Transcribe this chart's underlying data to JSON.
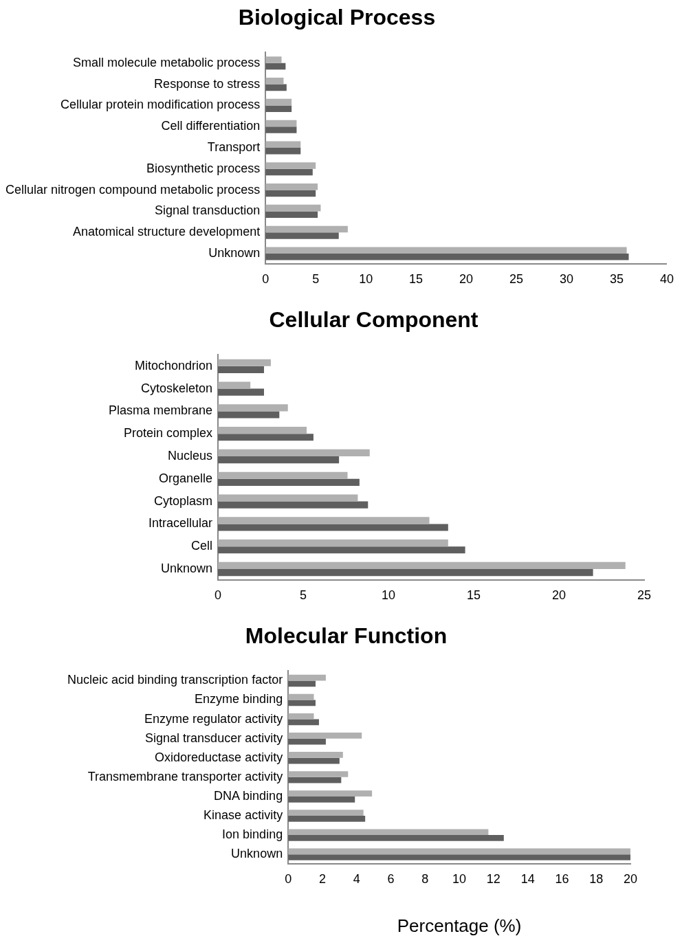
{
  "chart_data": [
    {
      "type": "bar",
      "orientation": "horizontal",
      "title": "Biological Process",
      "categories": [
        "Small molecule metabolic process",
        "Response to stress",
        "Cellular protein modification process",
        "Cell differentiation",
        "Transport",
        "Biosynthetic process",
        "Cellular nitrogen compound metabolic process",
        "Signal transduction",
        "Anatomical structure development",
        "Unknown"
      ],
      "series": [
        {
          "color": "#b0b0b0",
          "values": [
            1.6,
            1.8,
            2.6,
            3.1,
            3.5,
            5.0,
            5.2,
            5.5,
            8.2,
            36.0
          ]
        },
        {
          "color": "#5f5f5f",
          "values": [
            2.0,
            2.1,
            2.6,
            3.1,
            3.5,
            4.7,
            5.0,
            5.2,
            7.3,
            36.2
          ]
        }
      ],
      "xlim": [
        0,
        40
      ],
      "xticks": [
        0,
        5,
        10,
        15,
        20,
        25,
        30,
        35,
        40
      ],
      "grid": false,
      "legend": false
    },
    {
      "type": "bar",
      "orientation": "horizontal",
      "title": "Cellular Component",
      "categories": [
        "Mitochondrion",
        "Cytoskeleton",
        "Plasma membrane",
        "Protein complex",
        "Nucleus",
        "Organelle",
        "Cytoplasm",
        "Intracellular",
        "Cell",
        "Unknown"
      ],
      "series": [
        {
          "color": "#b0b0b0",
          "values": [
            3.1,
            1.9,
            4.1,
            5.2,
            8.9,
            7.6,
            8.2,
            12.4,
            13.5,
            23.9
          ]
        },
        {
          "color": "#5f5f5f",
          "values": [
            2.7,
            2.7,
            3.6,
            5.6,
            7.1,
            8.3,
            8.8,
            13.5,
            14.5,
            22.0
          ]
        }
      ],
      "xlim": [
        0,
        25
      ],
      "xticks": [
        0,
        5,
        10,
        15,
        20,
        25
      ],
      "grid": false,
      "legend": false
    },
    {
      "type": "bar",
      "orientation": "horizontal",
      "title": "Molecular Function",
      "xlabel": "Percentage (%)",
      "categories": [
        "Nucleic acid binding transcription factor",
        "Enzyme binding",
        "Enzyme regulator activity",
        "Signal transducer activity",
        "Oxidoreductase activity",
        "Transmembrane transporter activity",
        "DNA binding",
        "Kinase activity",
        "Ion binding",
        "Unknown"
      ],
      "series": [
        {
          "color": "#b0b0b0",
          "values": [
            2.2,
            1.5,
            1.5,
            4.3,
            3.2,
            3.5,
            4.9,
            4.4,
            11.7,
            20.0
          ]
        },
        {
          "color": "#5f5f5f",
          "values": [
            1.6,
            1.6,
            1.8,
            2.2,
            3.0,
            3.1,
            3.9,
            4.5,
            12.6,
            20.0
          ]
        }
      ],
      "xlim": [
        0,
        20
      ],
      "xticks": [
        0,
        2,
        4,
        6,
        8,
        10,
        12,
        14,
        16,
        18,
        20
      ],
      "grid": false,
      "legend": false
    }
  ]
}
